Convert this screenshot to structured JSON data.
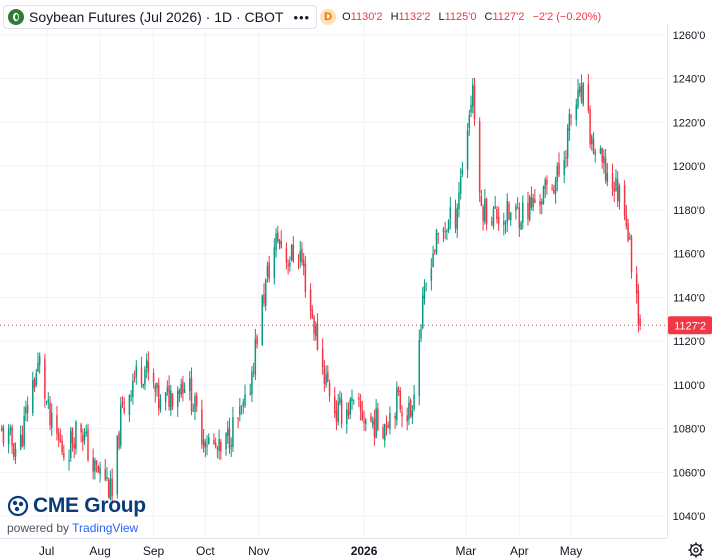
{
  "legend": {
    "title": "Soybean Futures (Jul 2026) · 1D · CBOT",
    "badge": "D",
    "open_label": "O",
    "open": "1130'2",
    "high_label": "H",
    "high": "1132'2",
    "low_label": "L",
    "low": "1125'0",
    "close_label": "C",
    "close": "1127'2",
    "change": "−2'2 (−0.20%)"
  },
  "branding": {
    "company": "CME Group",
    "powered_by": "powered by",
    "platform": "TradingView"
  },
  "colors": {
    "up": "#089981",
    "down": "#f23645",
    "price_line": "#f23645",
    "grid": "#f0f3fa",
    "axis_text": "#131722"
  },
  "chart_data": {
    "type": "candlestick",
    "title": "Soybean Futures (Jul 2026) · 1D · CBOT",
    "ylim": [
      1030,
      1265
    ],
    "y_ticks": [
      "1260'0",
      "1240'0",
      "1220'0",
      "1200'0",
      "1180'0",
      "1160'0",
      "1140'0",
      "1120'0",
      "1100'0",
      "1080'0",
      "1060'0",
      "1040'0"
    ],
    "y_tick_values": [
      1260,
      1240,
      1220,
      1200,
      1180,
      1160,
      1140,
      1120,
      1100,
      1080,
      1060,
      1040
    ],
    "x_ticks": [
      "Jul",
      "Aug",
      "Sep",
      "Oct",
      "Nov",
      "2026",
      "Mar",
      "Apr",
      "May"
    ],
    "x_tick_dates": [
      "2025-07-01",
      "2025-08-01",
      "2025-09-01",
      "2025-10-01",
      "2025-11-01",
      "2026-01-01",
      "2026-03-01",
      "2026-04-01",
      "2026-05-01"
    ],
    "x_range": [
      "2025-06-04",
      "2026-06-25"
    ],
    "last_price": 1127.25,
    "last_price_label": "1127'2",
    "grid": true,
    "trend_closes": [
      [
        "2025-06-05",
        1078
      ],
      [
        "2025-06-15",
        1070
      ],
      [
        "2025-06-22",
        1098
      ],
      [
        "2025-06-27",
        1110
      ],
      [
        "2025-07-03",
        1082
      ],
      [
        "2025-07-12",
        1068
      ],
      [
        "2025-07-20",
        1084
      ],
      [
        "2025-07-28",
        1062
      ],
      [
        "2025-08-04",
        1058
      ],
      [
        "2025-08-08",
        1048
      ],
      [
        "2025-08-13",
        1085
      ],
      [
        "2025-08-20",
        1103
      ],
      [
        "2025-08-27",
        1108
      ],
      [
        "2025-09-05",
        1090
      ],
      [
        "2025-09-12",
        1097
      ],
      [
        "2025-09-20",
        1103
      ],
      [
        "2025-09-28",
        1080
      ],
      [
        "2025-10-04",
        1073
      ],
      [
        "2025-10-10",
        1068
      ],
      [
        "2025-10-16",
        1079
      ],
      [
        "2025-10-25",
        1090
      ],
      [
        "2025-11-01",
        1128
      ],
      [
        "2025-11-06",
        1150
      ],
      [
        "2025-11-12",
        1168
      ],
      [
        "2025-11-17",
        1158
      ],
      [
        "2025-11-25",
        1160
      ],
      [
        "2025-12-01",
        1135
      ],
      [
        "2025-12-08",
        1108
      ],
      [
        "2025-12-16",
        1087
      ],
      [
        "2025-12-24",
        1090
      ],
      [
        "2026-01-05",
        1083
      ],
      [
        "2026-01-12",
        1082
      ],
      [
        "2026-01-20",
        1093
      ],
      [
        "2026-01-28",
        1087
      ],
      [
        "2026-02-03",
        1128
      ],
      [
        "2026-02-08",
        1158
      ],
      [
        "2026-02-15",
        1170
      ],
      [
        "2026-02-23",
        1178
      ],
      [
        "2026-03-01",
        1212
      ],
      [
        "2026-03-05",
        1237
      ],
      [
        "2026-03-09",
        1182
      ],
      [
        "2026-03-17",
        1178
      ],
      [
        "2026-03-26",
        1177
      ],
      [
        "2026-04-05",
        1180
      ],
      [
        "2026-04-15",
        1187
      ],
      [
        "2026-04-25",
        1197
      ],
      [
        "2026-05-02",
        1227
      ],
      [
        "2026-05-08",
        1232
      ],
      [
        "2026-05-13",
        1210
      ],
      [
        "2026-05-20",
        1198
      ],
      [
        "2026-05-27",
        1190
      ],
      [
        "2026-06-01",
        1184
      ],
      [
        "2026-06-04",
        1162
      ],
      [
        "2026-06-08",
        1142
      ],
      [
        "2026-06-10",
        1127.25
      ]
    ]
  }
}
